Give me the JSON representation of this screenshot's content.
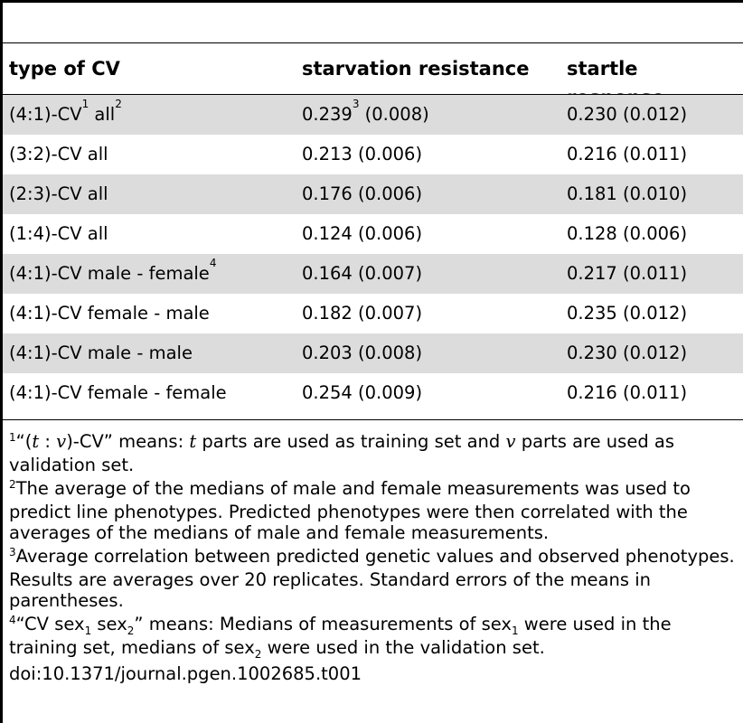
{
  "table": {
    "headers": [
      "type of CV",
      "starvation resistance",
      "startle response"
    ],
    "rows": [
      {
        "type": "(4:1)-CV",
        "type_sup": "1",
        "type_mid": " all",
        "type_sup2": "2",
        "starvation": "0.239",
        "starvation_sup": "3",
        "starvation_se": " (0.008)",
        "startle": "0.230 (0.012)"
      },
      {
        "type": "(3:2)-CV all",
        "starvation": "0.213 (0.006)",
        "startle": "0.216 (0.011)"
      },
      {
        "type": "(2:3)-CV all",
        "starvation": "0.176 (0.006)",
        "startle": "0.181 (0.010)"
      },
      {
        "type": "(1:4)-CV all",
        "starvation": "0.124 (0.006)",
        "startle": "0.128 (0.006)"
      },
      {
        "type": "(4:1)-CV male - female",
        "type_sup": "4",
        "starvation": "0.164 (0.007)",
        "startle": "0.217 (0.011)"
      },
      {
        "type": "(4:1)-CV female - male",
        "starvation": "0.182 (0.007)",
        "startle": "0.235 (0.012)"
      },
      {
        "type": "(4:1)-CV male - male",
        "starvation": "0.203 (0.008)",
        "startle": "0.230 (0.012)"
      },
      {
        "type": "(4:1)-CV female - female",
        "starvation": "0.254 (0.009)",
        "startle": "0.216 (0.011)"
      }
    ]
  },
  "footnotes": {
    "n1": {
      "num": "1",
      "a": "“(",
      "t": "t",
      "colon": " : ",
      "v": "v",
      "b": ")-CV” means: ",
      "t2": "t",
      "c": " parts are used as training set and ",
      "v2": "v",
      "d": " parts are used as validation set."
    },
    "n2": {
      "num": "2",
      "text": "The average of the medians of male and female measurements was used to predict line phenotypes. Predicted phenotypes were then correlated with the averages of the medians of male and female measurements."
    },
    "n3": {
      "num": "3",
      "text": "Average correlation between predicted genetic values and observed phenotypes. Results are averages over 20 replicates. Standard errors of the means in parentheses."
    },
    "n4": {
      "num": "4",
      "a": "“CV sex",
      "s1": "1",
      "b": " sex",
      "s2": "2",
      "c": "” means: Medians of measurements of sex",
      "s3": "1",
      "d": " were used in the training set, medians of sex",
      "s4": "2",
      "e": " were used in the validation set."
    },
    "doi": "doi:10.1371/journal.pgen.1002685.t001"
  }
}
